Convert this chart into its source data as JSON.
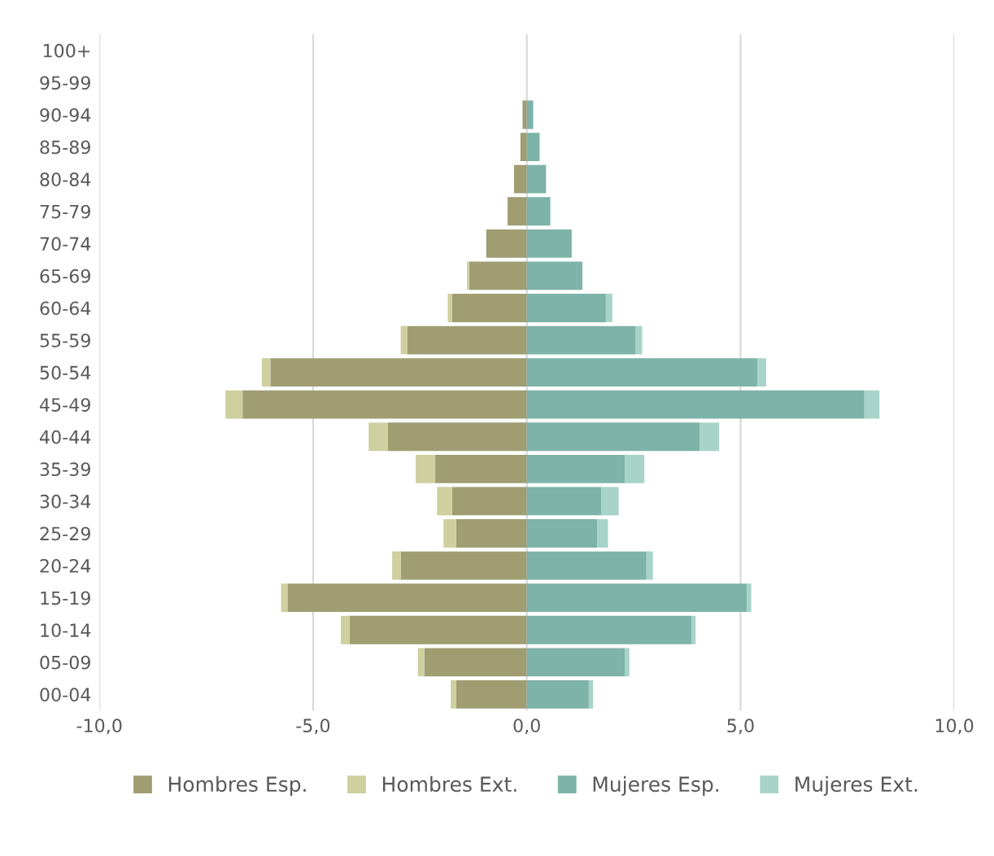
{
  "chart_data": {
    "type": "bar",
    "orientation": "horizontal",
    "stacked": true,
    "categories": [
      "100+",
      "95-99",
      "90-94",
      "85-89",
      "80-84",
      "75-79",
      "70-74",
      "65-69",
      "60-64",
      "55-59",
      "50-54",
      "45-49",
      "40-44",
      "35-39",
      "30-34",
      "25-29",
      "20-24",
      "15-19",
      "10-14",
      "05-09",
      "00-04"
    ],
    "series": [
      {
        "name": "Hombres Esp.",
        "color": "#a09d72",
        "values": [
          0,
          0,
          -0.1,
          -0.15,
          -0.3,
          -0.45,
          -0.95,
          -1.35,
          -1.75,
          -2.8,
          -6.0,
          -6.65,
          -3.25,
          -2.15,
          -1.75,
          -1.65,
          -2.95,
          -5.6,
          -4.15,
          -2.4,
          -1.65
        ]
      },
      {
        "name": "Hombres Ext.",
        "color": "#cfcf9f",
        "values": [
          0,
          0,
          0,
          0,
          0,
          0,
          0,
          -0.05,
          -0.1,
          -0.15,
          -0.2,
          -0.4,
          -0.45,
          -0.45,
          -0.35,
          -0.3,
          -0.2,
          -0.15,
          -0.2,
          -0.15,
          -0.13
        ]
      },
      {
        "name": "Mujeres Esp.",
        "color": "#7db3a8",
        "values": [
          0,
          0,
          0.15,
          0.3,
          0.45,
          0.55,
          1.05,
          1.3,
          1.85,
          2.55,
          5.4,
          7.9,
          4.05,
          2.3,
          1.75,
          1.65,
          2.8,
          5.15,
          3.85,
          2.3,
          1.45
        ]
      },
      {
        "name": "Mujeres Ext.",
        "color": "#a8d3c9",
        "values": [
          0,
          0,
          0,
          0,
          0,
          0,
          0,
          0,
          0.15,
          0.15,
          0.2,
          0.35,
          0.45,
          0.45,
          0.4,
          0.25,
          0.15,
          0.1,
          0.1,
          0.1,
          0.1
        ]
      }
    ],
    "xlim": [
      -10,
      10
    ],
    "xticks": [
      {
        "value": -10,
        "label": "-10,0"
      },
      {
        "value": -5,
        "label": "-5,0"
      },
      {
        "value": 0,
        "label": "0,0"
      },
      {
        "value": 5,
        "label": "5,0"
      },
      {
        "value": 10,
        "label": "10,0"
      }
    ],
    "grid": "x",
    "legend": "bottom"
  }
}
